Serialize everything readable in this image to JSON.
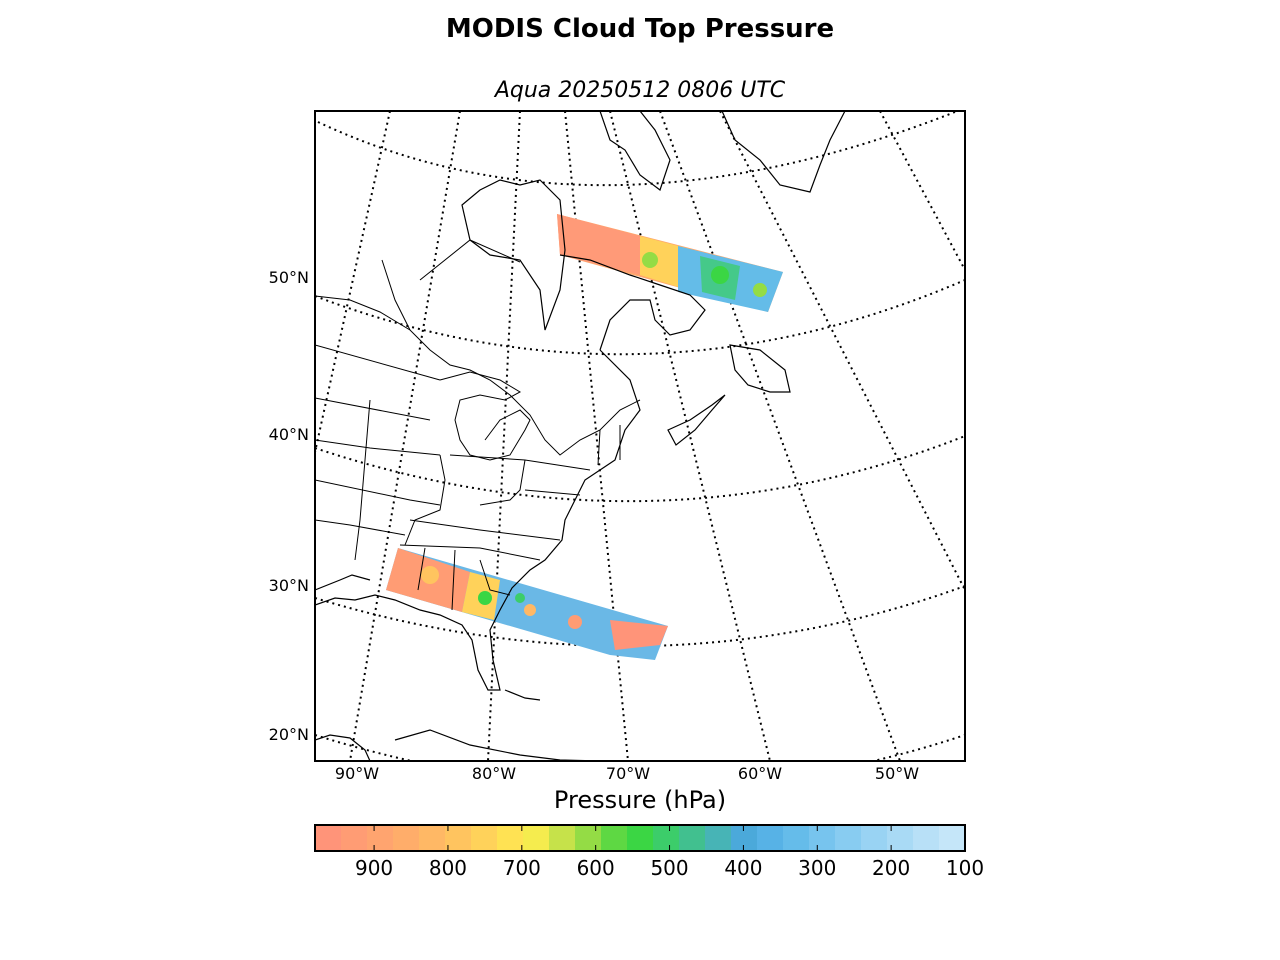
{
  "figure": {
    "title": "MODIS Cloud Top Pressure",
    "subtitle": "Aqua 20250512 0806 UTC"
  },
  "map": {
    "projection": "lambert-conformal",
    "parallels": [
      {
        "label": "50°N"
      },
      {
        "label": "40°N"
      },
      {
        "label": "30°N"
      },
      {
        "label": "20°N"
      }
    ],
    "meridians": [
      {
        "label": "90°W"
      },
      {
        "label": "80°W"
      },
      {
        "label": "70°W"
      },
      {
        "label": "60°W"
      },
      {
        "label": "50°W"
      }
    ],
    "graticule_style": "dotted",
    "coastline_color": "#000000",
    "land_color": "#ffffff"
  },
  "colorbar": {
    "title": "Pressure (hPa)",
    "range": [
      980,
      100
    ],
    "colors": [
      "#ff9479",
      "#ff9c74",
      "#ffa46f",
      "#ffad6a",
      "#ffb865",
      "#ffc45f",
      "#ffd25a",
      "#ffe253",
      "#f5ec4e",
      "#c6e24a",
      "#94dc45",
      "#5ed843",
      "#3bd644",
      "#3ccd6a",
      "#41c08f",
      "#47b4b6",
      "#4ba9da",
      "#57b2e6",
      "#65bcea",
      "#77c4ee",
      "#88ccf1",
      "#99d3f3",
      "#a9daf5",
      "#b8e0f7",
      "#c5e6f9"
    ],
    "ticks": [
      {
        "value": 900,
        "label": "900"
      },
      {
        "value": 800,
        "label": "800"
      },
      {
        "value": 700,
        "label": "700"
      },
      {
        "value": 600,
        "label": "600"
      },
      {
        "value": 500,
        "label": "500"
      },
      {
        "value": 400,
        "label": "400"
      },
      {
        "value": 300,
        "label": "300"
      },
      {
        "value": 200,
        "label": "200"
      },
      {
        "value": 100,
        "label": "100"
      }
    ]
  }
}
